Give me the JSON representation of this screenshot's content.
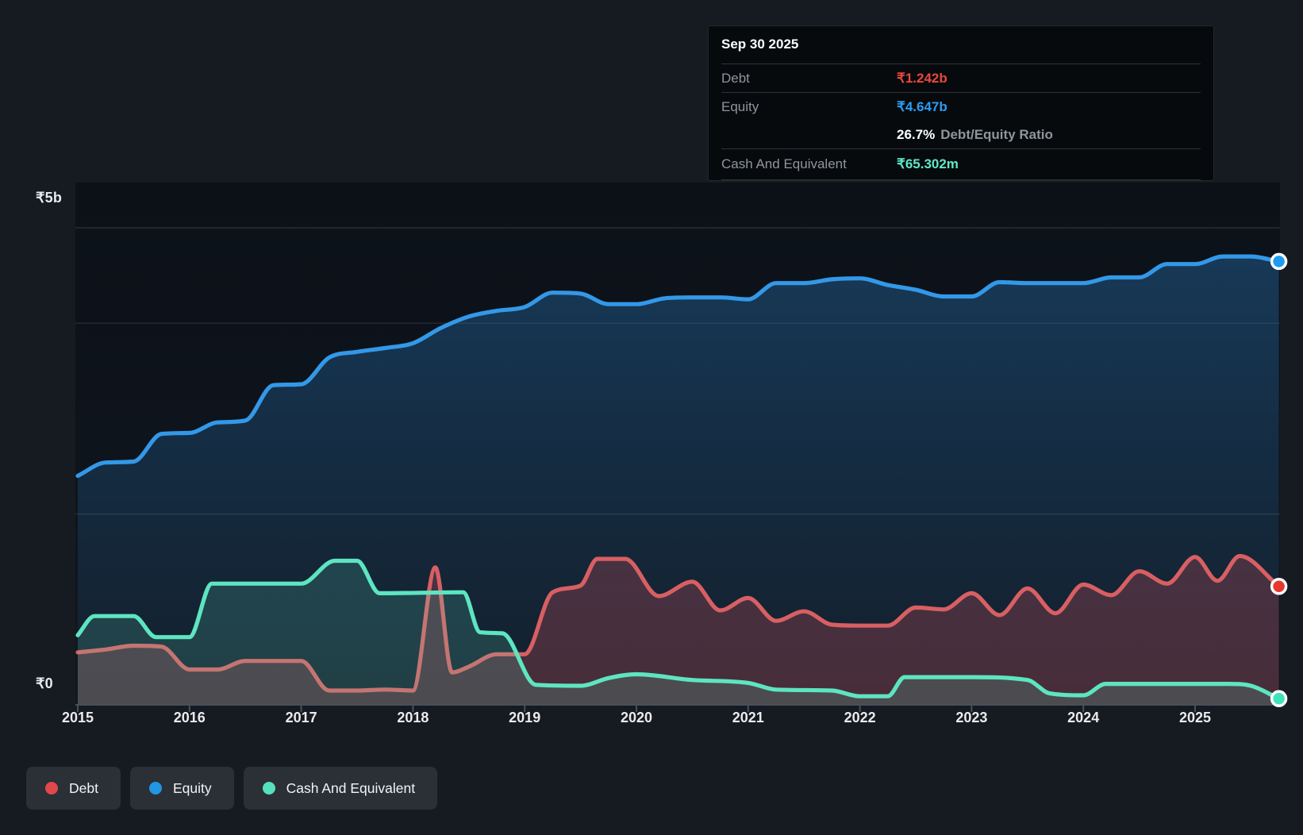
{
  "tooltip": {
    "date": "Sep 30 2025",
    "debt_label": "Debt",
    "debt_value": "₹1.242b",
    "debt_color": "#e8473f",
    "equity_label": "Equity",
    "equity_value": "₹4.647b",
    "equity_color": "#2d9bf0",
    "ratio_value": "26.7%",
    "ratio_label": "Debt/Equity Ratio",
    "cash_label": "Cash And Equivalent",
    "cash_value": "₹65.302m",
    "cash_color": "#5fe8c8"
  },
  "y_axis": {
    "top_label": "₹5b",
    "zero_label": "₹0"
  },
  "x_axis": {
    "years": [
      "2015",
      "2016",
      "2017",
      "2018",
      "2019",
      "2020",
      "2021",
      "2022",
      "2023",
      "2024",
      "2025"
    ]
  },
  "legend": [
    {
      "label": "Debt",
      "color": "#e0484c"
    },
    {
      "label": "Equity",
      "color": "#2196e3"
    },
    {
      "label": "Cash And Equivalent",
      "color": "#57e0bd"
    }
  ],
  "chart_data": {
    "type": "area",
    "title": "Debt to Equity History and Analysis",
    "x_unit": "decimal_year",
    "xlim": [
      2015.0,
      2025.75
    ],
    "ylim": [
      0,
      5
    ],
    "y_currency": "₹ (billions)",
    "grid_values_b": [
      5,
      4,
      2
    ],
    "x_ticks": [
      2015,
      2016,
      2017,
      2018,
      2019,
      2020,
      2021,
      2022,
      2023,
      2024,
      2025
    ],
    "legend_position": "bottom-left",
    "series": [
      {
        "name": "Equity",
        "line_color": "#3398e8",
        "dot_color": "#1e9bf0",
        "fill_top": "rgba(42,126,196,0.38)",
        "fill_bottom": "rgba(42,126,196,0.06)",
        "points": [
          [
            2015.0,
            2.4
          ],
          [
            2015.25,
            2.54
          ],
          [
            2015.5,
            2.55
          ],
          [
            2015.75,
            2.84
          ],
          [
            2016.0,
            2.85
          ],
          [
            2016.25,
            2.96
          ],
          [
            2016.5,
            2.98
          ],
          [
            2016.75,
            3.35
          ],
          [
            2017.0,
            3.36
          ],
          [
            2017.25,
            3.64
          ],
          [
            2017.5,
            3.7
          ],
          [
            2017.75,
            3.74
          ],
          [
            2018.0,
            3.79
          ],
          [
            2018.25,
            3.95
          ],
          [
            2018.5,
            4.07
          ],
          [
            2018.75,
            4.13
          ],
          [
            2019.0,
            4.17
          ],
          [
            2019.25,
            4.32
          ],
          [
            2019.5,
            4.31
          ],
          [
            2019.75,
            4.2
          ],
          [
            2020.0,
            4.2
          ],
          [
            2020.25,
            4.26
          ],
          [
            2020.5,
            4.27
          ],
          [
            2020.75,
            4.27
          ],
          [
            2021.0,
            4.25
          ],
          [
            2021.25,
            4.42
          ],
          [
            2021.5,
            4.42
          ],
          [
            2021.75,
            4.46
          ],
          [
            2022.0,
            4.47
          ],
          [
            2022.25,
            4.4
          ],
          [
            2022.5,
            4.35
          ],
          [
            2022.75,
            4.28
          ],
          [
            2023.0,
            4.28
          ],
          [
            2023.25,
            4.43
          ],
          [
            2023.5,
            4.42
          ],
          [
            2023.75,
            4.42
          ],
          [
            2024.0,
            4.42
          ],
          [
            2024.25,
            4.48
          ],
          [
            2024.5,
            4.48
          ],
          [
            2024.75,
            4.62
          ],
          [
            2025.0,
            4.62
          ],
          [
            2025.25,
            4.7
          ],
          [
            2025.5,
            4.7
          ],
          [
            2025.75,
            4.647
          ]
        ]
      },
      {
        "name": "Debt",
        "line_color": "#d85f62",
        "dot_color": "#e5382f",
        "fill": "rgba(222,85,95,0.26)",
        "points": [
          [
            2015.0,
            0.55
          ],
          [
            2015.25,
            0.58
          ],
          [
            2015.5,
            0.62
          ],
          [
            2015.75,
            0.61
          ],
          [
            2016.0,
            0.37
          ],
          [
            2016.25,
            0.37
          ],
          [
            2016.5,
            0.46
          ],
          [
            2016.75,
            0.46
          ],
          [
            2017.0,
            0.46
          ],
          [
            2017.25,
            0.15
          ],
          [
            2017.5,
            0.15
          ],
          [
            2017.75,
            0.16
          ],
          [
            2018.0,
            0.15
          ],
          [
            2018.2,
            1.44
          ],
          [
            2018.35,
            0.34
          ],
          [
            2018.5,
            0.4
          ],
          [
            2018.75,
            0.53
          ],
          [
            2019.0,
            0.53
          ],
          [
            2019.25,
            1.18
          ],
          [
            2019.5,
            1.25
          ],
          [
            2019.65,
            1.53
          ],
          [
            2019.9,
            1.53
          ],
          [
            2020.2,
            1.14
          ],
          [
            2020.5,
            1.29
          ],
          [
            2020.75,
            0.99
          ],
          [
            2021.0,
            1.12
          ],
          [
            2021.25,
            0.88
          ],
          [
            2021.5,
            0.98
          ],
          [
            2021.75,
            0.84
          ],
          [
            2022.0,
            0.83
          ],
          [
            2022.25,
            0.83
          ],
          [
            2022.5,
            1.02
          ],
          [
            2022.75,
            1.0
          ],
          [
            2023.0,
            1.17
          ],
          [
            2023.25,
            0.94
          ],
          [
            2023.5,
            1.22
          ],
          [
            2023.75,
            0.96
          ],
          [
            2024.0,
            1.26
          ],
          [
            2024.25,
            1.15
          ],
          [
            2024.5,
            1.4
          ],
          [
            2024.75,
            1.27
          ],
          [
            2025.0,
            1.55
          ],
          [
            2025.2,
            1.3
          ],
          [
            2025.4,
            1.56
          ],
          [
            2025.75,
            1.242
          ]
        ]
      },
      {
        "name": "Cash And Equivalent",
        "line_color": "#5de5c1",
        "dot_color": "#3fe2ba",
        "fill": "rgba(100,228,197,0.17)",
        "points": [
          [
            2015.0,
            0.73
          ],
          [
            2015.15,
            0.93
          ],
          [
            2015.5,
            0.93
          ],
          [
            2015.7,
            0.71
          ],
          [
            2016.0,
            0.71
          ],
          [
            2016.2,
            1.27
          ],
          [
            2017.0,
            1.27
          ],
          [
            2017.3,
            1.51
          ],
          [
            2017.5,
            1.51
          ],
          [
            2017.7,
            1.17
          ],
          [
            2018.45,
            1.18
          ],
          [
            2018.6,
            0.76
          ],
          [
            2018.8,
            0.75
          ],
          [
            2019.1,
            0.21
          ],
          [
            2019.5,
            0.2
          ],
          [
            2019.75,
            0.28
          ],
          [
            2020.0,
            0.32
          ],
          [
            2020.5,
            0.26
          ],
          [
            2021.0,
            0.23
          ],
          [
            2021.25,
            0.16
          ],
          [
            2021.75,
            0.15
          ],
          [
            2022.0,
            0.09
          ],
          [
            2022.25,
            0.09
          ],
          [
            2022.4,
            0.29
          ],
          [
            2023.0,
            0.29
          ],
          [
            2023.5,
            0.26
          ],
          [
            2023.7,
            0.12
          ],
          [
            2024.0,
            0.1
          ],
          [
            2024.2,
            0.22
          ],
          [
            2025.3,
            0.22
          ],
          [
            2025.5,
            0.2
          ],
          [
            2025.75,
            0.065
          ]
        ]
      }
    ]
  }
}
